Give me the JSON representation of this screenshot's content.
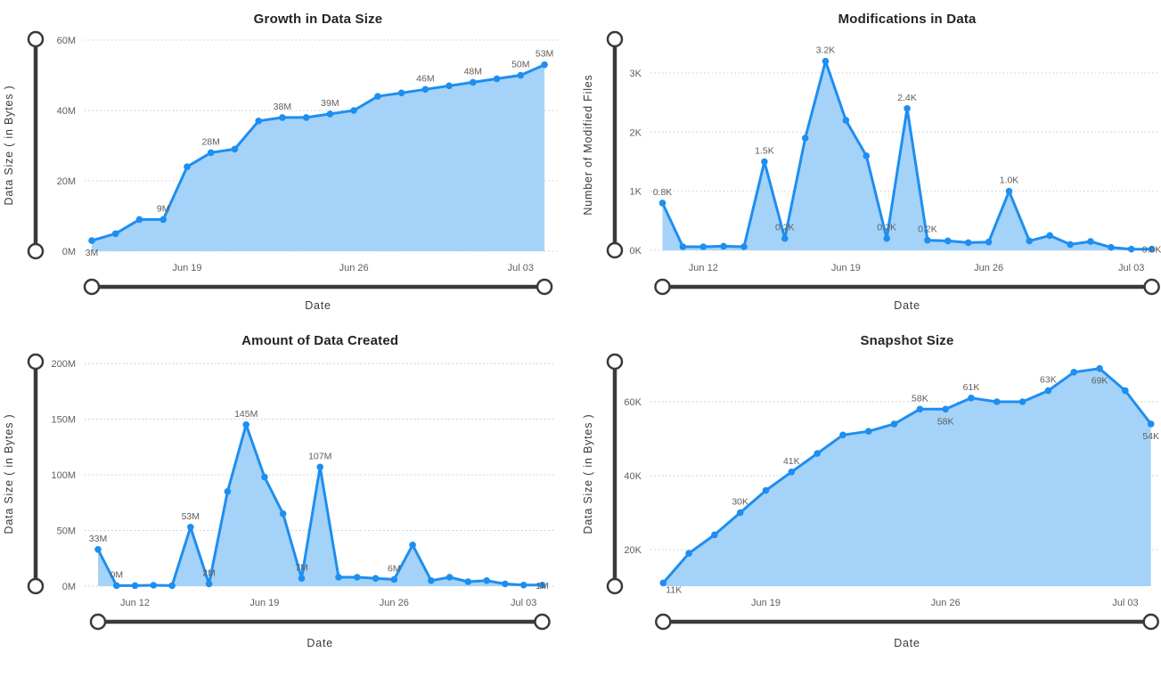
{
  "dashboard_title": "",
  "colors": {
    "line": "#1E8EF0",
    "fill": "#A5D2F8",
    "slider": "#3B3A39",
    "grid": "#C9C9C9",
    "title": "#252423",
    "tick": "#605E5C"
  },
  "chart_data": [
    {
      "type": "area",
      "title": "Growth in Data Size",
      "xlabel": "Date",
      "ylabel": "Data Size ( in Bytes )",
      "ylim": [
        0,
        60
      ],
      "grid": "dotted",
      "y_ticks": [
        {
          "v": 0,
          "label": "0M"
        },
        {
          "v": 20,
          "label": "20M"
        },
        {
          "v": 40,
          "label": "40M"
        },
        {
          "v": 60,
          "label": "60M"
        }
      ],
      "x_ticks": [
        {
          "i": 4,
          "label": "Jun 19"
        },
        {
          "i": 11,
          "label": "Jun 26"
        },
        {
          "i": 18,
          "label": "Jul 03"
        }
      ],
      "values": [
        3,
        5,
        9,
        9,
        24,
        28,
        29,
        37,
        38,
        38,
        39,
        40,
        44,
        45,
        46,
        47,
        48,
        49,
        50,
        53
      ],
      "point_labels": [
        {
          "i": 0,
          "text": "3M",
          "pos": "b"
        },
        {
          "i": 3,
          "text": "9M",
          "pos": "a"
        },
        {
          "i": 5,
          "text": "28M",
          "pos": "a"
        },
        {
          "i": 8,
          "text": "38M",
          "pos": "a"
        },
        {
          "i": 10,
          "text": "39M",
          "pos": "a"
        },
        {
          "i": 14,
          "text": "46M",
          "pos": "a"
        },
        {
          "i": 16,
          "text": "48M",
          "pos": "a"
        },
        {
          "i": 18,
          "text": "50M",
          "pos": "a"
        },
        {
          "i": 19,
          "text": "53M",
          "pos": "a"
        }
      ]
    },
    {
      "type": "area",
      "title": "Modifications in Data",
      "xlabel": "Date",
      "ylabel": "Number of Modified Files",
      "ylim": [
        0,
        3.3
      ],
      "grid": "dotted",
      "y_ticks": [
        {
          "v": 0,
          "label": "0K"
        },
        {
          "v": 1,
          "label": "1K"
        },
        {
          "v": 2,
          "label": "2K"
        },
        {
          "v": 3,
          "label": "3K"
        }
      ],
      "x_ticks": [
        {
          "i": 2,
          "label": "Jun 12"
        },
        {
          "i": 9,
          "label": "Jun 19"
        },
        {
          "i": 16,
          "label": "Jun 26"
        },
        {
          "i": 23,
          "label": "Jul 03"
        }
      ],
      "values": [
        0.8,
        0.06,
        0.06,
        0.07,
        0.06,
        1.5,
        0.2,
        1.9,
        3.2,
        2.2,
        1.6,
        0.2,
        2.4,
        0.17,
        0.16,
        0.13,
        0.14,
        1.0,
        0.16,
        0.25,
        0.1,
        0.15,
        0.05,
        0.02,
        0.02
      ],
      "point_labels": [
        {
          "i": 0,
          "text": "0.8K",
          "pos": "a"
        },
        {
          "i": 5,
          "text": "1.5K",
          "pos": "a"
        },
        {
          "i": 6,
          "text": "0.2K",
          "pos": "a"
        },
        {
          "i": 8,
          "text": "3.2K",
          "pos": "a"
        },
        {
          "i": 11,
          "text": "0.2K",
          "pos": "a"
        },
        {
          "i": 12,
          "text": "2.4K",
          "pos": "a"
        },
        {
          "i": 13,
          "text": "0.2K",
          "pos": "a"
        },
        {
          "i": 17,
          "text": "1.0K",
          "pos": "a"
        },
        {
          "i": 24,
          "text": "0.0K",
          "pos": "on"
        }
      ]
    },
    {
      "type": "area",
      "title": "Amount of Data Created",
      "xlabel": "Date",
      "ylabel": "Data Size ( in Bytes )",
      "ylim": [
        0,
        200
      ],
      "grid": "dotted",
      "y_ticks": [
        {
          "v": 0,
          "label": "0M"
        },
        {
          "v": 50,
          "label": "50M"
        },
        {
          "v": 100,
          "label": "100M"
        },
        {
          "v": 150,
          "label": "150M"
        },
        {
          "v": 200,
          "label": "200M"
        }
      ],
      "x_ticks": [
        {
          "i": 2,
          "label": "Jun 12"
        },
        {
          "i": 9,
          "label": "Jun 19"
        },
        {
          "i": 16,
          "label": "Jun 26"
        },
        {
          "i": 23,
          "label": "Jul 03"
        }
      ],
      "values": [
        33,
        0.5,
        0.5,
        0.8,
        0.5,
        53,
        2,
        85,
        145,
        98,
        65,
        7,
        107,
        8,
        8,
        7,
        6,
        37,
        5,
        8,
        4,
        5,
        2,
        1,
        1
      ],
      "point_labels": [
        {
          "i": 0,
          "text": "33M",
          "pos": "a"
        },
        {
          "i": 1,
          "text": "0M",
          "pos": "a"
        },
        {
          "i": 5,
          "text": "53M",
          "pos": "a"
        },
        {
          "i": 6,
          "text": "2M",
          "pos": "a"
        },
        {
          "i": 8,
          "text": "145M",
          "pos": "a"
        },
        {
          "i": 11,
          "text": "7M",
          "pos": "a"
        },
        {
          "i": 12,
          "text": "107M",
          "pos": "a"
        },
        {
          "i": 16,
          "text": "6M",
          "pos": "a"
        },
        {
          "i": 24,
          "text": "1M",
          "pos": "on"
        }
      ]
    },
    {
      "type": "area",
      "title": "Snapshot Size",
      "xlabel": "Date",
      "ylabel": "Data Size ( in Bytes )",
      "ylim": [
        10,
        70
      ],
      "grid": "dotted",
      "y_ticks": [
        {
          "v": 20,
          "label": "20K"
        },
        {
          "v": 40,
          "label": "40K"
        },
        {
          "v": 60,
          "label": "60K"
        }
      ],
      "x_ticks": [
        {
          "i": 4,
          "label": "Jun 19"
        },
        {
          "i": 11,
          "label": "Jun 26"
        },
        {
          "i": 18,
          "label": "Jul 03"
        }
      ],
      "values": [
        11,
        19,
        24,
        30,
        36,
        41,
        46,
        51,
        52,
        54,
        58,
        58,
        61,
        60,
        60,
        63,
        68,
        69,
        63,
        54
      ],
      "point_labels": [
        {
          "i": 0,
          "text": "11K",
          "pos": "br"
        },
        {
          "i": 3,
          "text": "30K",
          "pos": "a"
        },
        {
          "i": 5,
          "text": "41K",
          "pos": "a"
        },
        {
          "i": 10,
          "text": "58K",
          "pos": "a"
        },
        {
          "i": 11,
          "text": "58K",
          "pos": "b"
        },
        {
          "i": 12,
          "text": "61K",
          "pos": "a"
        },
        {
          "i": 15,
          "text": "63K",
          "pos": "a"
        },
        {
          "i": 17,
          "text": "69K",
          "pos": "b"
        },
        {
          "i": 19,
          "text": "54K",
          "pos": "b"
        }
      ]
    }
  ]
}
